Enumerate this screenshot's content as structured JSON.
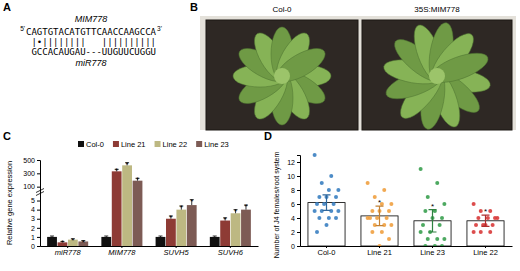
{
  "panel_labels": [
    "A",
    "B",
    "C",
    "D"
  ],
  "panel_a": {
    "title": "MIM778",
    "top_5": "5'",
    "top_strand": "CAGTGTACATGTTCAACCAAGCCA",
    "top_3": "3'",
    "pairing": "|•||||||||   ||||||||||",
    "bottom_strand": "GCCACAUGAU---UUGUUCUGGU",
    "bottom_label": "miR778"
  },
  "panel_b": {
    "labels": [
      "Col-0",
      "35S:MIM778"
    ]
  },
  "chart_data": [
    {
      "type": "bar",
      "categories": [
        "miR778",
        "MIM778",
        "SUVH5",
        "SUVH6"
      ],
      "y_label": "Relative gene expression",
      "ylim": [
        0,
        500
      ],
      "ybreak": [
        5.5,
        50
      ],
      "yticks": [
        0,
        1,
        2,
        3,
        4,
        5,
        100,
        300,
        500
      ],
      "legend": "top",
      "series": [
        {
          "name": "Col-0",
          "color": "#111111",
          "values": [
            1,
            1,
            1,
            1
          ],
          "errors": [
            0.1,
            0.1,
            0.1,
            0.1
          ]
        },
        {
          "name": "Line 21",
          "color": "#8e3b35",
          "values": [
            0.4,
            330,
            3.0,
            2.8
          ],
          "errors": [
            0.1,
            30,
            0.3,
            0.3
          ],
          "annotations": [
            "*",
            "*",
            "*",
            "*"
          ]
        },
        {
          "name": "Line 22",
          "color": "#bdb882",
          "values": [
            0.7,
            420,
            4.0,
            3.6
          ],
          "errors": [
            0.1,
            40,
            0.4,
            0.4
          ],
          "annotations": [
            "*",
            "*",
            "*",
            "*"
          ]
        },
        {
          "name": "Line 23",
          "color": "#7d5b55",
          "values": [
            0.5,
            190,
            4.5,
            4.0
          ],
          "errors": [
            0.1,
            35,
            0.6,
            0.5
          ],
          "annotations": [
            "*",
            "*",
            "*",
            "*"
          ]
        }
      ]
    },
    {
      "type": "bar",
      "categories": [
        "Col-0",
        "Line 21",
        "Line 23",
        "Line 22"
      ],
      "y_label": "Number of J4 females/root system",
      "ylim": [
        0,
        13
      ],
      "yticks": [
        0,
        2,
        4,
        6,
        8,
        10,
        12
      ],
      "values": [
        6.2,
        4.3,
        3.6,
        3.6
      ],
      "errors": [
        1.1,
        1.4,
        1.6,
        0.8
      ],
      "annotations": [
        null,
        "*",
        "*",
        "*"
      ],
      "colors": [
        "#3a7fc1",
        "#f0a040",
        "#3aa050",
        "#d83a3a"
      ],
      "points": [
        [
          13,
          10,
          9,
          8,
          8,
          7,
          7,
          7,
          6,
          6,
          6,
          5,
          5,
          5,
          5,
          4,
          4,
          4,
          3,
          2
        ],
        [
          9,
          8,
          7,
          6,
          6,
          5,
          5,
          5,
          4,
          4,
          4,
          4,
          3,
          3,
          3,
          2,
          2,
          1,
          0
        ],
        [
          11,
          9,
          7,
          6,
          5,
          5,
          4,
          4,
          3,
          3,
          2,
          2,
          1,
          1,
          1,
          0,
          0,
          0
        ],
        [
          6,
          5,
          5,
          4,
          4,
          4,
          4,
          3,
          3,
          3,
          3,
          2,
          2,
          2
        ]
      ]
    }
  ]
}
